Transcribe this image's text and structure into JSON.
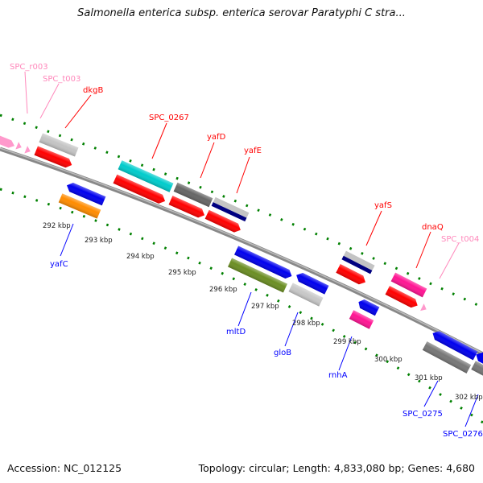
{
  "title": "Salmonella enterica subsp. enterica serovar Paratyphi C stra...",
  "footer": {
    "accession": "Accession: NC_012125",
    "topology": "Topology: circular; Length: 4,833,080 bp; Genes: 4,680"
  },
  "colors": {
    "forward_label": "#ff0000",
    "reverse_label": "#0000ff",
    "rna_label": "#ff88bb",
    "ticks": "#008000",
    "backbone": "#888888"
  },
  "forward_labels": [
    "SPC_r003",
    "SPC_t003",
    "dkgB",
    "SPC_0267",
    "yafD",
    "yafE",
    "yafS",
    "dnaQ",
    "SPC_t004"
  ],
  "reverse_labels": [
    "yafC",
    "mltD",
    "gloB",
    "rnhA",
    "SPC_0275",
    "SPC_0276"
  ],
  "ticks": [
    "292 kbp",
    "293 kbp",
    "294 kbp",
    "295 kbp",
    "296 kbp",
    "297 kbp",
    "298 kbp",
    "299 kbp",
    "300 kbp",
    "301 kbp",
    "302 kbp"
  ]
}
